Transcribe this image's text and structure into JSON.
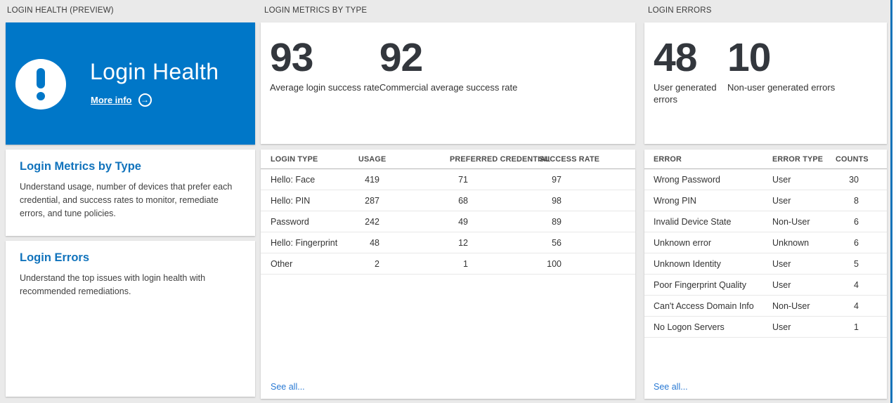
{
  "theme": {
    "tile_blue": "#0077c8",
    "heading_blue": "#1173bc",
    "link_blue": "#2a7ad4",
    "background_gray": "#eaeaea"
  },
  "health": {
    "section_title": "LOGIN HEALTH (PREVIEW)",
    "tile": {
      "title": "Login Health",
      "more_info_label": "More info",
      "arrow_glyph": "→",
      "icon": "exclamation-icon"
    },
    "cards": [
      {
        "title": "Login Metrics by Type",
        "description": "Understand usage, number of devices that prefer each credential, and success rates to monitor, remediate errors, and tune policies."
      },
      {
        "title": "Login Errors",
        "description": "Understand the top issues with login health with recommended remediations."
      }
    ]
  },
  "metrics": {
    "section_title": "LOGIN METRICS BY TYPE",
    "stats": [
      {
        "value": "93",
        "label": "Average login success rate"
      },
      {
        "value": "92",
        "label": "Commercial average success rate"
      }
    ],
    "table": {
      "headers": [
        "LOGIN TYPE",
        "USAGE",
        "PREFERRED CREDENTIAL",
        "SUCCESS RATE"
      ],
      "rows": [
        [
          "Hello: Face",
          "419",
          "71",
          "97"
        ],
        [
          "Hello: PIN",
          "287",
          "68",
          "98"
        ],
        [
          "Password",
          "242",
          "49",
          "89"
        ],
        [
          "Hello: Fingerprint",
          "48",
          "12",
          "56"
        ],
        [
          "Other",
          "2",
          "1",
          "100"
        ]
      ]
    },
    "see_all_label": "See all..."
  },
  "errors": {
    "section_title": "LOGIN ERRORS",
    "stats": [
      {
        "value": "48",
        "label": "User generated errors"
      },
      {
        "value": "10",
        "label": "Non-user generated errors"
      }
    ],
    "table": {
      "headers": [
        "ERROR",
        "ERROR TYPE",
        "COUNTS"
      ],
      "rows": [
        [
          "Wrong Password",
          "User",
          "30"
        ],
        [
          "Wrong PIN",
          "User",
          "8"
        ],
        [
          "Invalid Device State",
          "Non-User",
          "6"
        ],
        [
          "Unknown error",
          "Unknown",
          "6"
        ],
        [
          "Unknown Identity",
          "User",
          "5"
        ],
        [
          "Poor Fingerprint Quality",
          "User",
          "4"
        ],
        [
          "Can't Access Domain Info",
          "Non-User",
          "4"
        ],
        [
          "No Logon Servers",
          "User",
          "1"
        ]
      ]
    },
    "see_all_label": "See all..."
  }
}
